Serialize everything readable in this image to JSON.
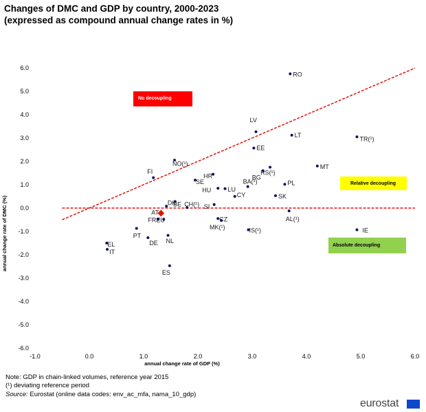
{
  "title_line1": "Changes of DMC and GDP by country, 2000-2023",
  "title_line2": "(expressed as compound annual change rates in %)",
  "notes": {
    "note1": "Note: GDP in chain-linked volumes, reference year 2015",
    "note2": "(¹) deviating reference period",
    "source_label": "Source:",
    "source_text": "Eurostat (online data codes: env_ac_mfa, nama_10_gdp)"
  },
  "logo": {
    "text": "eurostat",
    "flag_color": "#0e47cb"
  },
  "chart_data": {
    "type": "scatter",
    "xlabel": "annual change rate of GDP (%)",
    "ylabel": "annual change rate of DMC (%)",
    "xlim": [
      -1.0,
      6.0
    ],
    "ylim": [
      -6.0,
      6.0
    ],
    "x_ticks": [
      "-1.0",
      "0.0",
      "1.0",
      "2.0",
      "3.0",
      "4.0",
      "5.0",
      "6.0"
    ],
    "y_ticks": [
      "6.0",
      "5.0",
      "4.0",
      "3.0",
      "2.0",
      "1.0",
      "0.0",
      "-1.0",
      "-2.0",
      "-3.0",
      "-4.0",
      "-5.0",
      "-6.0"
    ],
    "grid": false,
    "colors": {
      "points": "#0b1560",
      "reference_lines": "#e3120b",
      "at_marker": "#e3120b"
    },
    "zones": [
      {
        "label": "No decoupling",
        "color": "#ff0000",
        "text_color": "#ffffff"
      },
      {
        "label": "Relative decoupling",
        "color": "#ffff00",
        "text_color": "#000000"
      },
      {
        "label": "Absolute decoupling",
        "color": "#92d050",
        "text_color": "#000000"
      }
    ],
    "points": [
      {
        "label": "RO",
        "x": 3.7,
        "y": 5.75
      },
      {
        "label": "LV",
        "x": 3.07,
        "y": 3.27
      },
      {
        "label": "LT",
        "x": 3.73,
        "y": 3.12
      },
      {
        "label": "TR(¹)",
        "x": 4.93,
        "y": 3.05
      },
      {
        "label": "EE",
        "x": 3.03,
        "y": 2.57
      },
      {
        "label": "NO(¹)",
        "x": 1.57,
        "y": 2.05
      },
      {
        "label": "MT",
        "x": 4.2,
        "y": 1.8
      },
      {
        "label": "RS(¹)",
        "x": 3.33,
        "y": 1.75
      },
      {
        "label": "BG",
        "x": 3.2,
        "y": 1.6
      },
      {
        "label": "FI",
        "x": 1.18,
        "y": 1.3
      },
      {
        "label": "HR",
        "x": 2.28,
        "y": 1.45
      },
      {
        "label": "SE",
        "x": 1.95,
        "y": 1.2
      },
      {
        "label": "BA(¹)",
        "x": 2.92,
        "y": 0.92
      },
      {
        "label": "PL",
        "x": 3.6,
        "y": 1.02
      },
      {
        "label": "HU",
        "x": 2.37,
        "y": 0.85
      },
      {
        "label": "LU",
        "x": 2.5,
        "y": 0.83
      },
      {
        "label": "CY",
        "x": 2.68,
        "y": 0.5
      },
      {
        "label": "SK",
        "x": 3.43,
        "y": 0.53
      },
      {
        "label": "DK",
        "x": 1.58,
        "y": 0.28
      },
      {
        "label": "BE",
        "x": 1.42,
        "y": 0.08
      },
      {
        "label": "CH(¹)",
        "x": 1.8,
        "y": 0.02
      },
      {
        "label": "SI",
        "x": 2.3,
        "y": 0.15
      },
      {
        "label": "AT",
        "x": 1.32,
        "y": -0.22
      },
      {
        "label": "AL(¹)",
        "x": 3.68,
        "y": -0.12
      },
      {
        "label": "FR",
        "x": 1.27,
        "y": -0.48
      },
      {
        "label": "EU",
        "x": 1.37,
        "y": -0.48
      },
      {
        "label": "CZ",
        "x": 2.37,
        "y": -0.45
      },
      {
        "label": "MK(¹)",
        "x": 2.43,
        "y": -0.53
      },
      {
        "label": "PT",
        "x": 0.87,
        "y": -0.87
      },
      {
        "label": "IS(¹)",
        "x": 2.93,
        "y": -0.93
      },
      {
        "label": "IE",
        "x": 4.93,
        "y": -0.93
      },
      {
        "label": "DE",
        "x": 1.08,
        "y": -1.27
      },
      {
        "label": "NL",
        "x": 1.45,
        "y": -1.17
      },
      {
        "label": "EL",
        "x": 0.32,
        "y": -1.5
      },
      {
        "label": "IT",
        "x": 0.33,
        "y": -1.77
      },
      {
        "label": "ES",
        "x": 1.48,
        "y": -2.47
      }
    ],
    "diagonal_line": {
      "x": [
        -0.5,
        6.0
      ],
      "y": [
        -0.5,
        6.0
      ]
    },
    "zero_line": {
      "x": [
        -0.5,
        6.0
      ],
      "y": [
        0.0,
        0.0
      ]
    }
  }
}
